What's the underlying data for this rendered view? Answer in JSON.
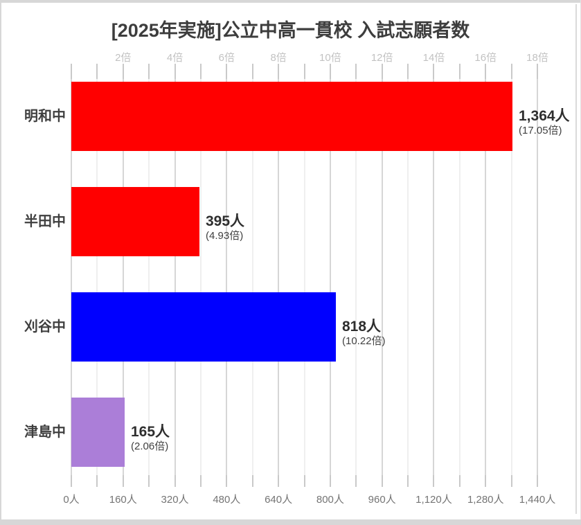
{
  "window": {
    "background": "#ffffff",
    "edge_color": "#d7d7d7"
  },
  "chart_data": {
    "type": "bar",
    "orientation": "horizontal",
    "title": "[2025年実施]公立中高一貫校 入試志願者数",
    "categories": [
      "明和中",
      "半田中",
      "刈谷中",
      "津島中"
    ],
    "values": [
      1364,
      395,
      818,
      165
    ],
    "value_labels": [
      "1,364人",
      "395人",
      "818人",
      "165人"
    ],
    "ratios": [
      17.05,
      4.93,
      10.22,
      2.06
    ],
    "ratio_labels": [
      "(17.05倍)",
      "(4.93倍)",
      "(10.22倍)",
      "(2.06倍)"
    ],
    "bar_colors": [
      "#ff0000",
      "#ff0000",
      "#0000ff",
      "#ab7ed8"
    ],
    "top_axis": {
      "unit": "倍",
      "tick_labels": [
        "2倍",
        "4倍",
        "6倍",
        "8倍",
        "10倍",
        "12倍",
        "14倍",
        "16倍",
        "18倍"
      ],
      "tick_values": [
        2,
        4,
        6,
        8,
        10,
        12,
        14,
        16,
        18
      ],
      "color": "#c2c2c2"
    },
    "bottom_axis": {
      "unit": "人",
      "tick_labels": [
        "0人",
        "160人",
        "320人",
        "480人",
        "640人",
        "800人",
        "960人",
        "1,120人",
        "1,280人",
        "1,440人"
      ],
      "tick_values": [
        0,
        160,
        320,
        480,
        640,
        800,
        960,
        1120,
        1280,
        1440
      ],
      "color": "#747474"
    },
    "persons_per_bai": 80,
    "axis_drawn_max_bai": 18,
    "axis_max_persons": 1560,
    "gridline_step_persons": 80,
    "grid": true,
    "legend": "none",
    "styles": {
      "title_color": "#3d3d3d",
      "category_color": "#3f3f3f",
      "value_color": "#2e2e2e",
      "ratio_color": "#3f3f3f",
      "gridline_major_color": "#d6d6d6",
      "gridline_minor_color": "#efefef",
      "tick_color": "#c9c9c9",
      "plot_border_color": "#dadada"
    }
  }
}
